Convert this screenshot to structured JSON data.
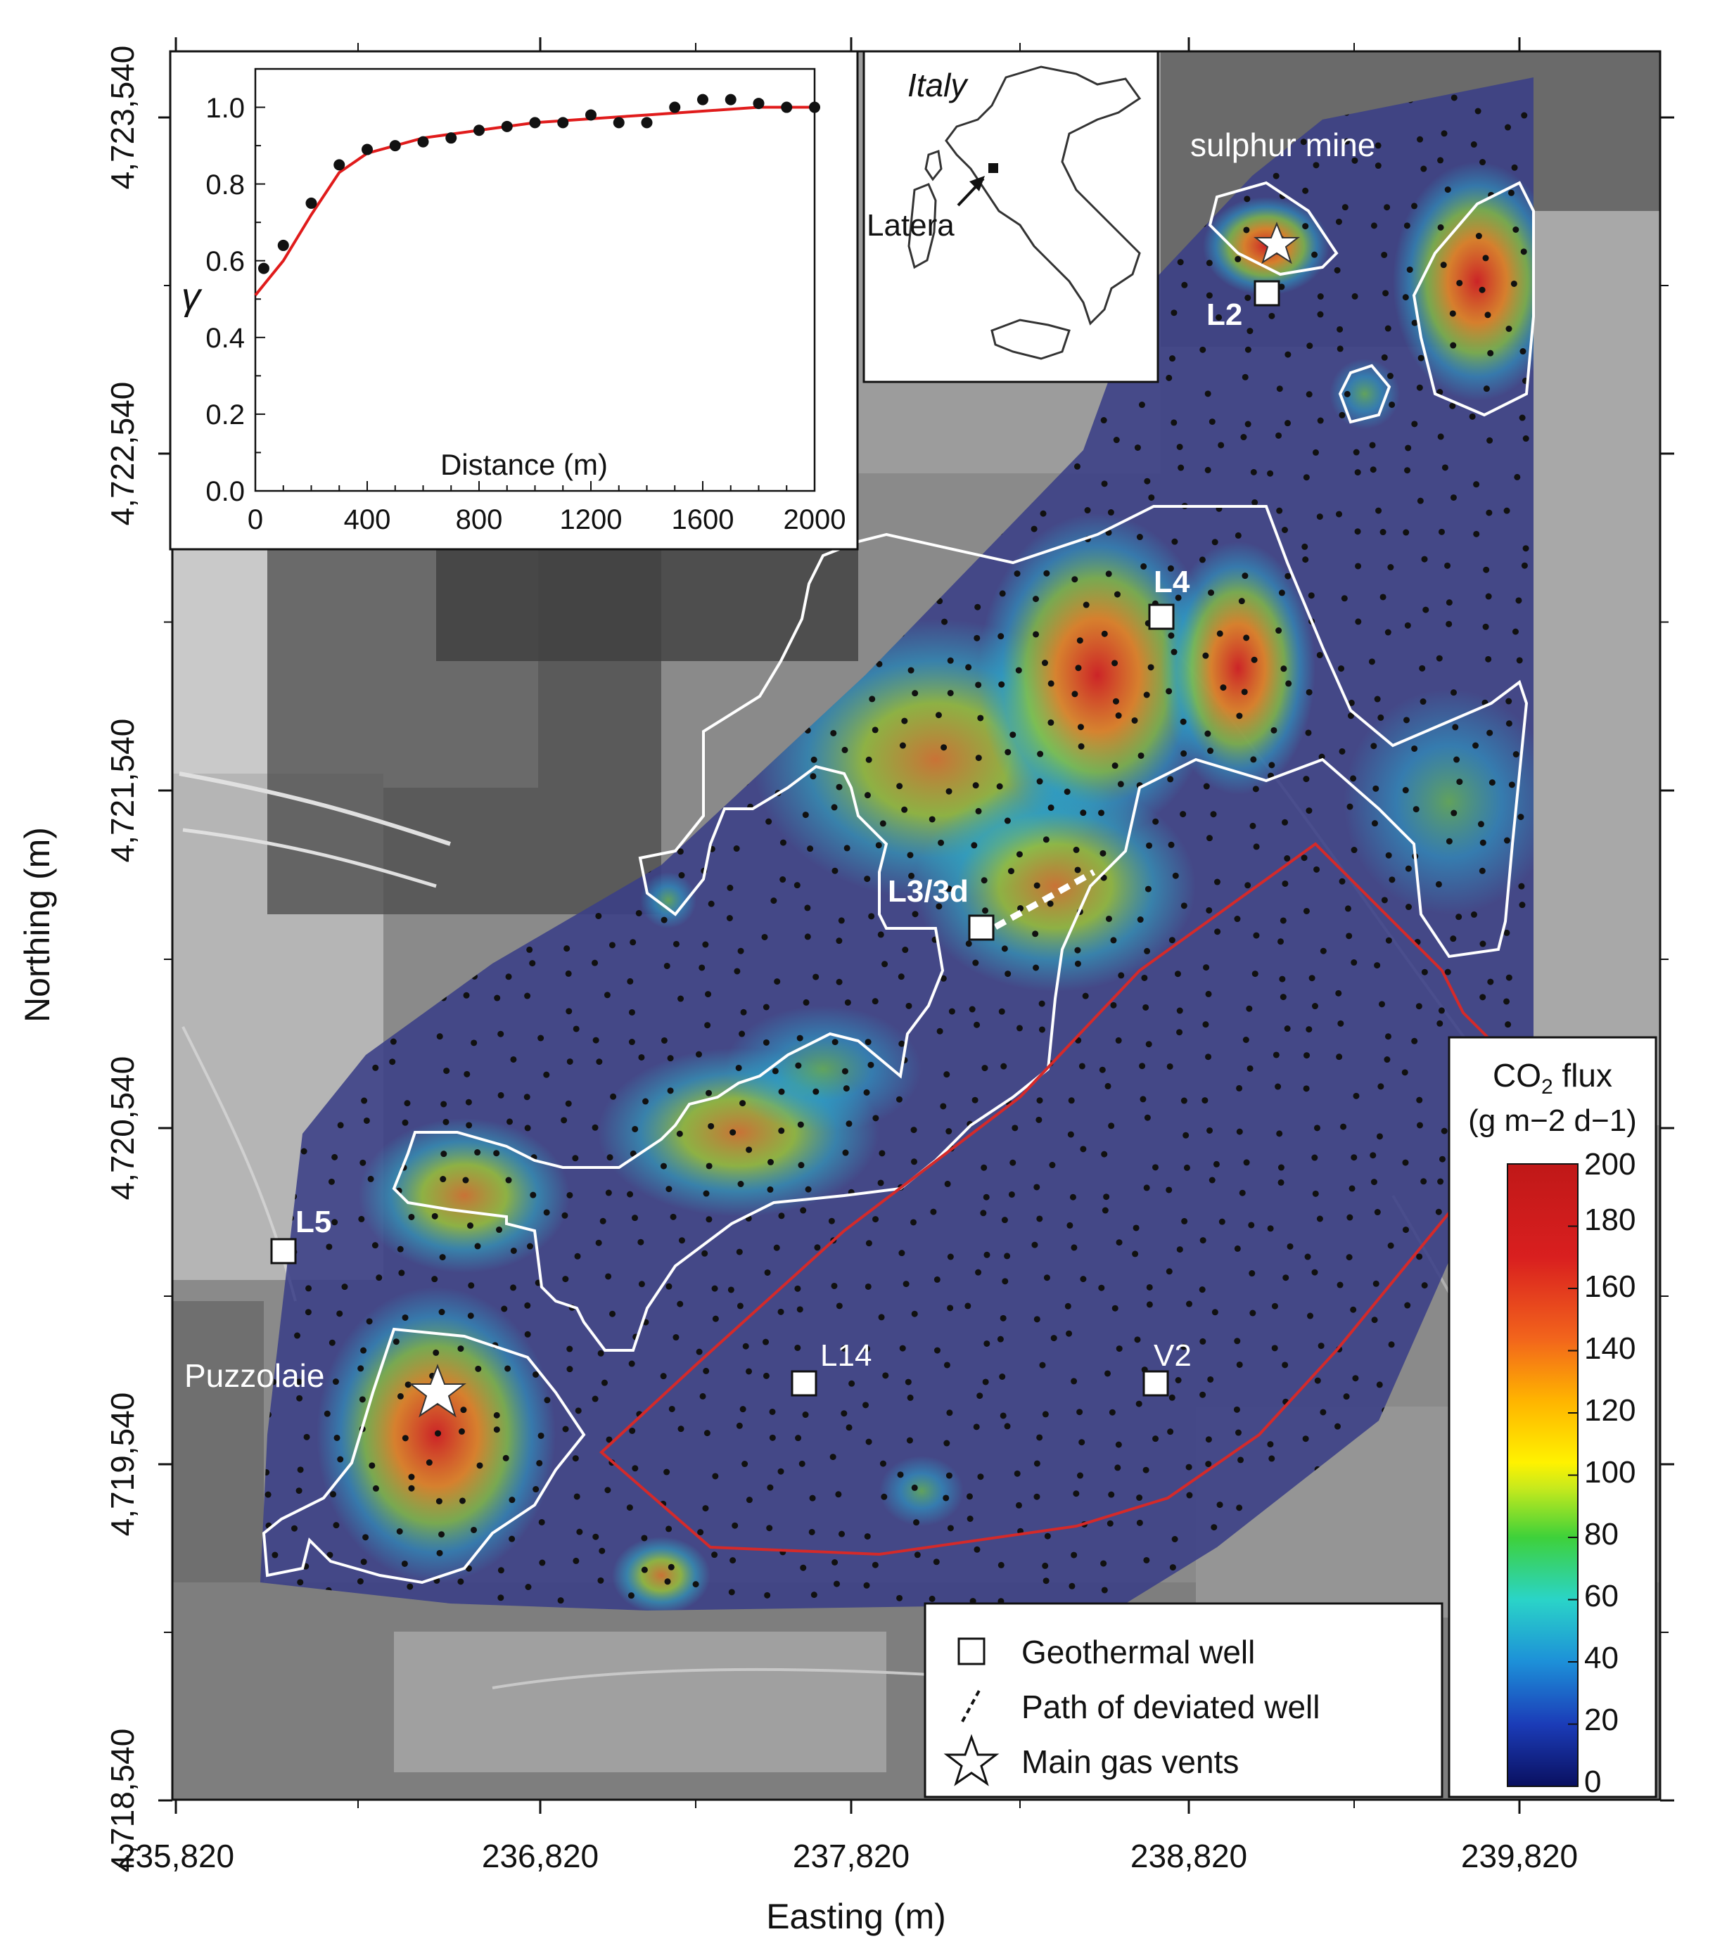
{
  "map": {
    "x_axis": {
      "title": "Easting (m)",
      "ticks": [
        "235,820",
        "236,820",
        "237,820",
        "238,820",
        "239,820"
      ]
    },
    "y_axis": {
      "title": "Northing (m)",
      "ticks": [
        "4,718,540",
        "4,719,540",
        "4,720,540",
        "4,721,540",
        "4,722,540",
        "4,723,540"
      ]
    },
    "labels": {
      "sulphur_mine": "sulphur mine",
      "puzzolaie": "Puzzolaie",
      "wells": {
        "L2": "L2",
        "L3": "L3/3d",
        "L4": "L4",
        "L5": "L5",
        "L14": "L14",
        "V2": "V2"
      }
    },
    "colors": {
      "survey_area": "#3a3f86",
      "anomaly_outline": "#ffffff",
      "red_boundary": "#d42a2a",
      "sample_points": "#111111"
    }
  },
  "inset_map": {
    "country": "Italy",
    "site": "Latera"
  },
  "legend": {
    "items": [
      {
        "symbol": "square-icon",
        "label": "Geothermal well"
      },
      {
        "symbol": "dashed-line-icon",
        "label": "Path of deviated well"
      },
      {
        "symbol": "star-icon",
        "label": "Main gas vents"
      }
    ]
  },
  "colorbar": {
    "title_prefix": "CO",
    "title_sub": "2",
    "title_suffix": " flux",
    "units": "(g m−2 d−1)",
    "ticks": [
      "200",
      "180",
      "160",
      "140",
      "120",
      "100",
      "80",
      "60",
      "40",
      "20",
      "0"
    ],
    "colors": [
      "#0a1060",
      "#1b3cb8",
      "#1d90d8",
      "#2ad4c8",
      "#3ed13a",
      "#c8ea1c",
      "#fff200",
      "#ffb400",
      "#f2641c",
      "#d91f1f",
      "#c01818"
    ]
  },
  "chart_data": {
    "type": "scatter",
    "title": "",
    "xlabel": "Distance (m)",
    "ylabel": "γ",
    "xlim": [
      0,
      2000
    ],
    "ylim": [
      0.0,
      1.1
    ],
    "x_ticks": [
      "0",
      "400",
      "800",
      "1200",
      "1600",
      "2000"
    ],
    "y_ticks": [
      "0.0",
      "0.2",
      "0.4",
      "0.6",
      "0.8",
      "1.0"
    ],
    "series": [
      {
        "type": "scatter",
        "points": [
          [
            30,
            0.58
          ],
          [
            100,
            0.64
          ],
          [
            200,
            0.75
          ],
          [
            300,
            0.85
          ],
          [
            400,
            0.89
          ],
          [
            500,
            0.9
          ],
          [
            600,
            0.91
          ],
          [
            700,
            0.92
          ],
          [
            800,
            0.94
          ],
          [
            900,
            0.95
          ],
          [
            1000,
            0.96
          ],
          [
            1100,
            0.96
          ],
          [
            1200,
            0.98
          ],
          [
            1300,
            0.96
          ],
          [
            1400,
            0.96
          ],
          [
            1500,
            1.0
          ],
          [
            1600,
            1.02
          ],
          [
            1700,
            1.02
          ],
          [
            1800,
            1.01
          ],
          [
            1900,
            1.0
          ],
          [
            2000,
            1.0
          ]
        ]
      },
      {
        "type": "line",
        "color": "#e01b1b",
        "points": [
          [
            0,
            0.51
          ],
          [
            100,
            0.6
          ],
          [
            200,
            0.72
          ],
          [
            300,
            0.83
          ],
          [
            400,
            0.88
          ],
          [
            600,
            0.92
          ],
          [
            800,
            0.94
          ],
          [
            1000,
            0.96
          ],
          [
            1200,
            0.97
          ],
          [
            1400,
            0.98
          ],
          [
            1600,
            0.99
          ],
          [
            1800,
            1.0
          ],
          [
            2000,
            1.0
          ]
        ]
      }
    ]
  }
}
